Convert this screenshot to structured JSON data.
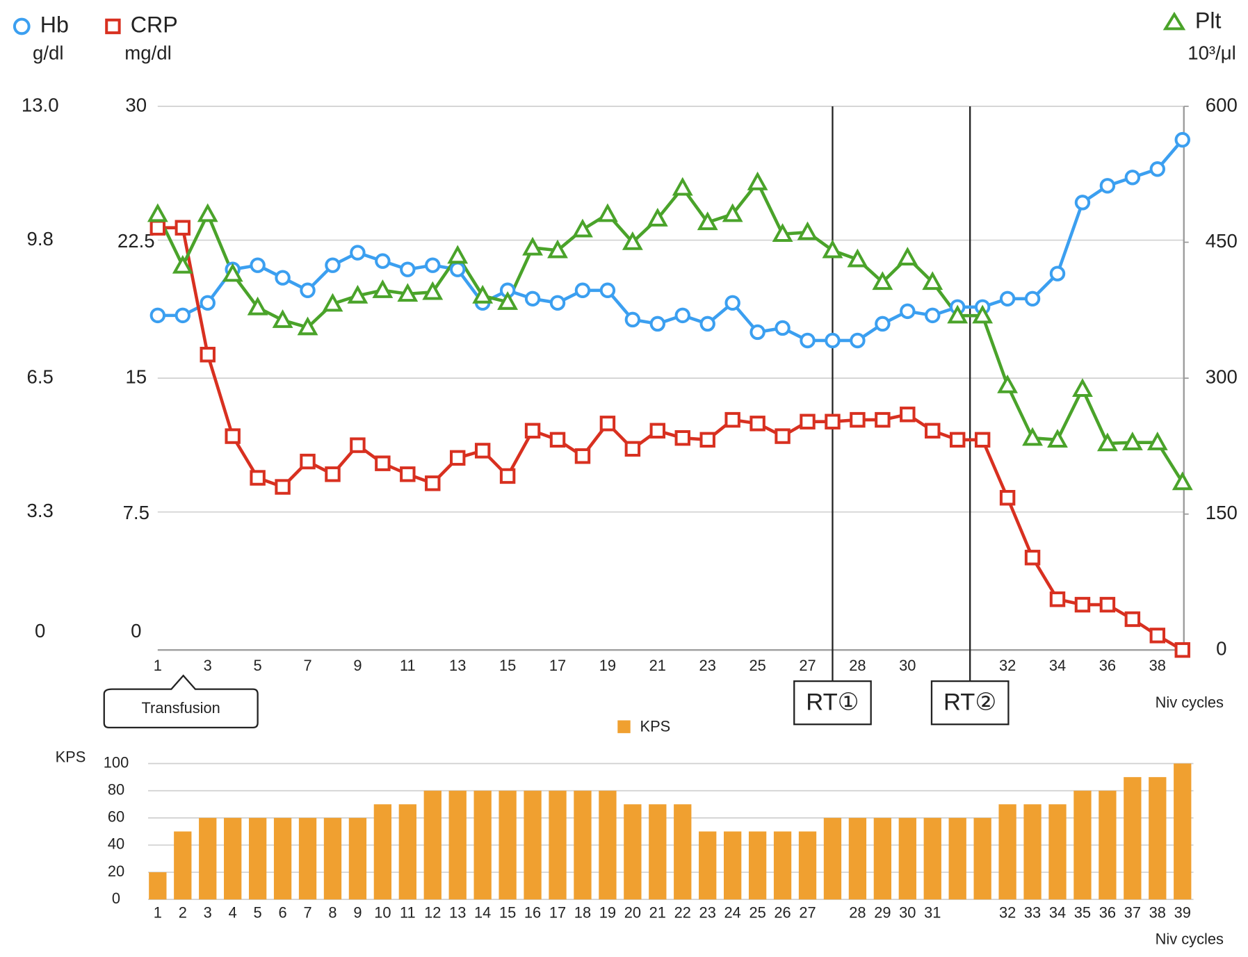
{
  "chart_data": [
    {
      "type": "line",
      "categories": [
        "1",
        null,
        "3",
        null,
        "5",
        null,
        "7",
        null,
        "9",
        null,
        "11",
        null,
        "13",
        null,
        "15",
        null,
        "17",
        null,
        "19",
        null,
        "21",
        null,
        "23",
        null,
        "25",
        null,
        "27",
        null,
        "28",
        null,
        "30",
        null,
        null,
        null,
        "32",
        null,
        "34",
        null,
        "36",
        null,
        "38",
        null
      ],
      "x_label": "Niv cycles",
      "ylim": [
        0,
        13
      ],
      "yticks": [
        0,
        3.3,
        6.5,
        9.8,
        {
          "value": 13,
          "label": "13.0"
        }
      ],
      "y2lim": [
        0,
        30
      ],
      "y2ticks": [
        0,
        7.5,
        15,
        22.5,
        30
      ],
      "y3lim": [
        0,
        600
      ],
      "y3ticks": [
        0,
        150,
        300,
        450,
        600
      ],
      "grid": true,
      "series": [
        {
          "name": "Hb",
          "unit": "g/dl",
          "color": "#3b9ff0",
          "marker": "circle",
          "axis": "y",
          "values": [
            8.0,
            8.0,
            8.3,
            9.1,
            9.2,
            8.9,
            8.6,
            9.2,
            9.5,
            9.3,
            9.1,
            9.2,
            9.1,
            8.3,
            8.6,
            8.4,
            8.3,
            8.6,
            8.6,
            7.9,
            7.8,
            8.0,
            7.8,
            8.3,
            7.6,
            7.7,
            7.4,
            7.4,
            7.4,
            7.8,
            8.1,
            8.0,
            8.2,
            8.2,
            8.4,
            8.4,
            9.0,
            10.7,
            11.1,
            11.3,
            11.5,
            12.2
          ]
        },
        {
          "name": "CRP",
          "unit": "mg/dl",
          "color": "#d83020",
          "marker": "square",
          "axis": "y2",
          "values": [
            23.3,
            23.3,
            16.3,
            11.8,
            9.5,
            9.0,
            10.4,
            9.7,
            11.3,
            10.3,
            9.7,
            9.2,
            10.6,
            11.0,
            9.6,
            12.1,
            11.6,
            10.7,
            12.5,
            11.1,
            12.1,
            11.7,
            11.6,
            12.7,
            12.5,
            11.8,
            12.6,
            12.6,
            12.7,
            12.7,
            13.0,
            12.1,
            11.6,
            11.6,
            8.4,
            5.1,
            2.8,
            2.5,
            2.5,
            1.7,
            0.8,
            0
          ]
        },
        {
          "name": "Plt",
          "unit": "10³/μl",
          "color": "#4aa32a",
          "marker": "triangle",
          "axis": "y3",
          "values": [
            481,
            424,
            481,
            415,
            378,
            364,
            356,
            382,
            391,
            397,
            393,
            395,
            435,
            391,
            384,
            444,
            441,
            464,
            481,
            450,
            476,
            510,
            472,
            481,
            516,
            459,
            461,
            441,
            431,
            406,
            433,
            406,
            369,
            369,
            292,
            234,
            232,
            288,
            228,
            229,
            229,
            185
          ]
        }
      ],
      "annotations": [
        "Transfusion",
        "RT①",
        "RT②"
      ]
    },
    {
      "type": "bar",
      "legend": "KPS",
      "y_label": "KPS",
      "x_label": "Niv cycles",
      "color": "#f0a030",
      "categories": [
        "1",
        "2",
        "3",
        "4",
        "5",
        "6",
        "7",
        "8",
        "9",
        "10",
        "11",
        "12",
        "13",
        "14",
        "15",
        "16",
        "17",
        "18",
        "19",
        "20",
        "21",
        "22",
        "23",
        "24",
        "25",
        "26",
        "27",
        null,
        "28",
        "29",
        "30",
        "31",
        null,
        null,
        "32",
        "33",
        "34",
        "35",
        "36",
        "37",
        "38",
        "39"
      ],
      "values": [
        20,
        50,
        60,
        60,
        60,
        60,
        60,
        60,
        60,
        70,
        70,
        80,
        80,
        80,
        80,
        80,
        80,
        80,
        80,
        70,
        70,
        70,
        50,
        50,
        50,
        50,
        50,
        60,
        60,
        60,
        60,
        60,
        60,
        60,
        70,
        70,
        70,
        80,
        80,
        90,
        90,
        100
      ],
      "ylim": [
        0,
        100
      ],
      "yticks": [
        0,
        20,
        40,
        60,
        80,
        100
      ],
      "grid": true
    }
  ]
}
